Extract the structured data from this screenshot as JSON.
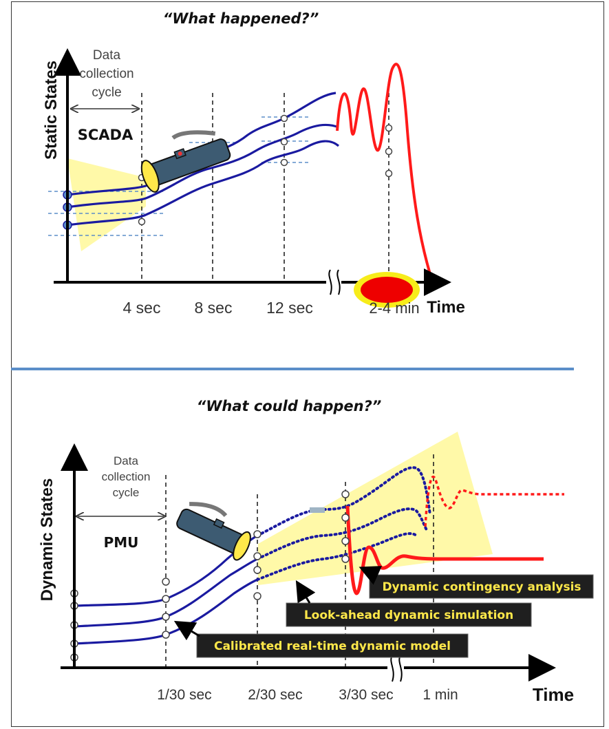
{
  "top": {
    "title": "“What happened?”",
    "y_axis_label": "Static States",
    "cycle_label_line1": "Data",
    "cycle_label_line2": "collection",
    "cycle_label_line3": "cycle",
    "source_label": "SCADA",
    "ticks": [
      "4 sec",
      "8 sec",
      "12 sec",
      "2-4 min"
    ],
    "x_axis_label": "Time"
  },
  "bottom": {
    "title": "“What could happen?”",
    "y_axis_label": "Dynamic States",
    "cycle_label_line1": "Data",
    "cycle_label_line2": "collection",
    "cycle_label_line3": "cycle",
    "source_label": "PMU",
    "ticks": [
      "1/30 sec",
      "2/30 sec",
      "3/30 sec",
      "1 min"
    ],
    "x_axis_label": "Time",
    "callouts": {
      "contingency": "Dynamic contingency analysis",
      "lookahead": "Look-ahead dynamic simulation",
      "calibrated": "Calibrated real-time dynamic model"
    }
  },
  "colors": {
    "curve_blue": "#1a1aa0",
    "curve_red": "#ff1a1a",
    "beam_yellow": "#fff9a8",
    "divider": "#5b8ec9",
    "callout_bg": "#1f1f1f",
    "callout_text": "#ffe84a"
  },
  "icons": [
    "flashlight-icon",
    "flashlight-icon"
  ]
}
